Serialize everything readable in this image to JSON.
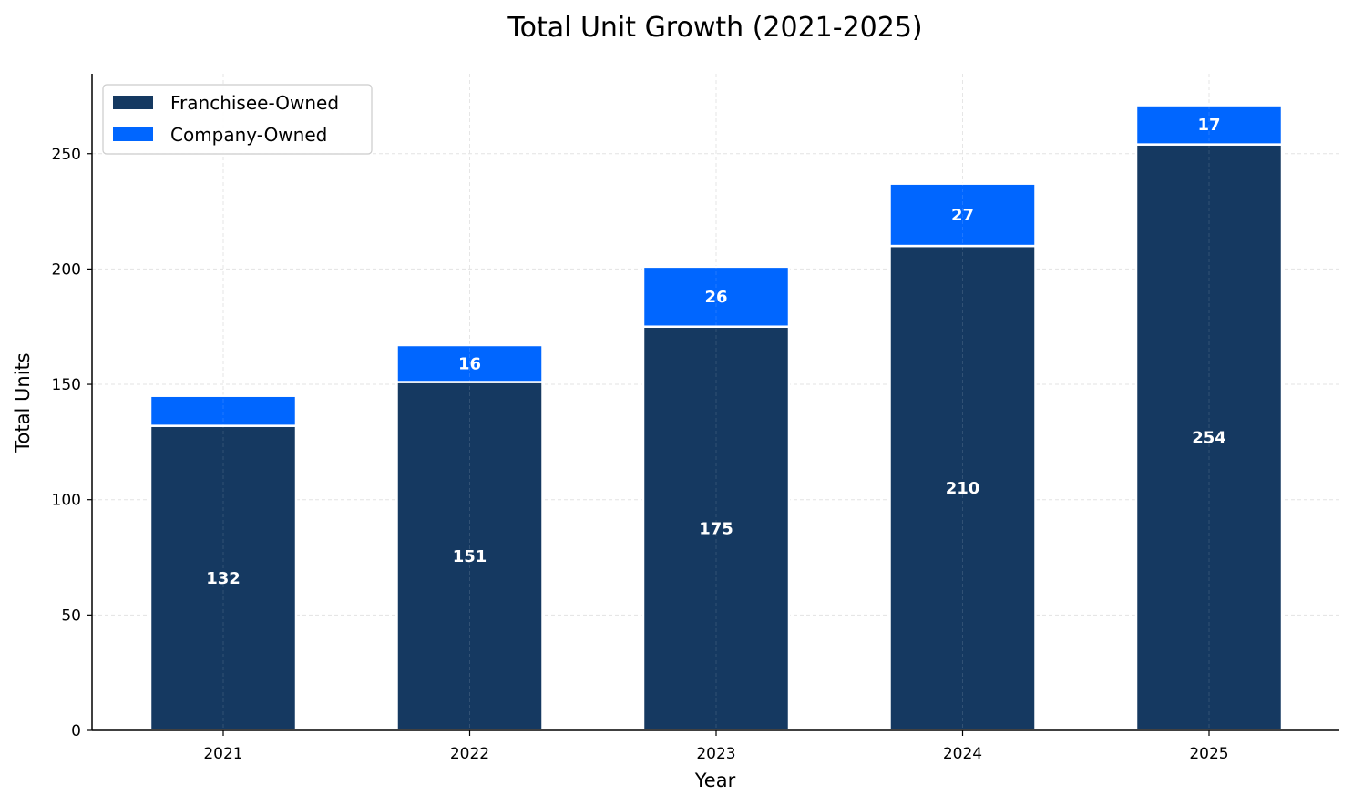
{
  "chart_data": {
    "type": "bar",
    "stacked": true,
    "title": "Total Unit Growth (2021-2025)",
    "xlabel": "Year",
    "ylabel": "Total Units",
    "categories": [
      "2021",
      "2022",
      "2023",
      "2024",
      "2025"
    ],
    "series": [
      {
        "name": "Franchisee-Owned",
        "values": [
          132,
          151,
          175,
          210,
          254
        ],
        "color": "#153961",
        "labels": [
          "132",
          "151",
          "175",
          "210",
          "254"
        ]
      },
      {
        "name": "Company-Owned",
        "values": [
          13,
          16,
          26,
          27,
          17
        ],
        "color": "#0066ff",
        "labels": [
          "",
          "16",
          "26",
          "27",
          "17"
        ]
      }
    ],
    "ylim": [
      0,
      285
    ],
    "yticks": [
      0,
      50,
      100,
      150,
      200,
      250
    ],
    "grid": true,
    "legend_position": "top-left"
  }
}
